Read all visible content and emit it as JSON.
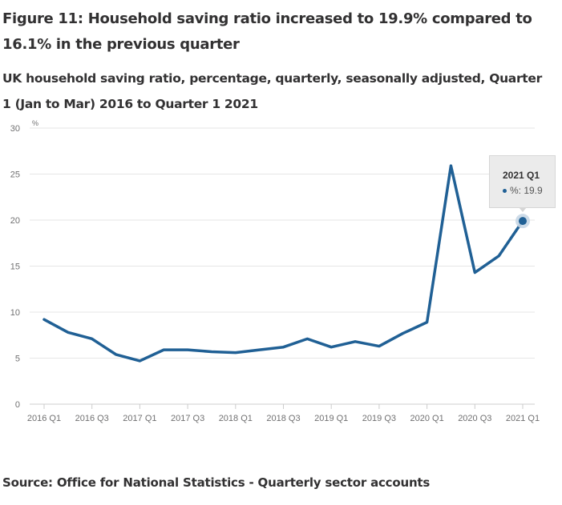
{
  "figure": {
    "title": "Figure 11: Household saving ratio increased to 19.9% compared to 16.1% in the previous quarter",
    "subtitle": "UK household saving ratio, percentage, quarterly, seasonally adjusted, Quarter 1 (Jan to Mar) 2016 to Quarter 1 2021",
    "source": "Source: Office for National Statistics - Quarterly sector accounts"
  },
  "tooltip": {
    "title": "2021 Q1",
    "line": "%: 19.9"
  },
  "colors": {
    "series": "#206095",
    "grid": "#e6e6e6",
    "text": "#323132"
  },
  "chart_data": {
    "type": "line",
    "title": "UK household saving ratio, percentage, quarterly, seasonally adjusted",
    "xlabel": "",
    "ylabel": "%",
    "ylim": [
      0,
      30
    ],
    "yticks": [
      0,
      5,
      10,
      15,
      20,
      25,
      30
    ],
    "grid": true,
    "legend": "none",
    "x": [
      "2016 Q1",
      "2016 Q2",
      "2016 Q3",
      "2016 Q4",
      "2017 Q1",
      "2017 Q2",
      "2017 Q3",
      "2017 Q4",
      "2018 Q1",
      "2018 Q2",
      "2018 Q3",
      "2018 Q4",
      "2019 Q1",
      "2019 Q2",
      "2019 Q3",
      "2019 Q4",
      "2020 Q1",
      "2020 Q2",
      "2020 Q3",
      "2020 Q4",
      "2021 Q1"
    ],
    "xtick_labels": [
      "2016 Q1",
      "2016 Q3",
      "2017 Q1",
      "2017 Q3",
      "2018 Q1",
      "2018 Q3",
      "2019 Q1",
      "2019 Q3",
      "2020 Q1",
      "2020 Q3",
      "2021 Q1"
    ],
    "series": [
      {
        "name": "%",
        "values": [
          9.2,
          7.8,
          7.1,
          5.4,
          4.7,
          5.9,
          5.9,
          5.7,
          5.6,
          5.9,
          6.2,
          7.1,
          6.2,
          6.8,
          6.3,
          7.7,
          8.9,
          25.9,
          14.3,
          16.1,
          19.9
        ]
      }
    ],
    "highlighted_point": {
      "x": "2021 Q1",
      "value": 19.9
    }
  }
}
